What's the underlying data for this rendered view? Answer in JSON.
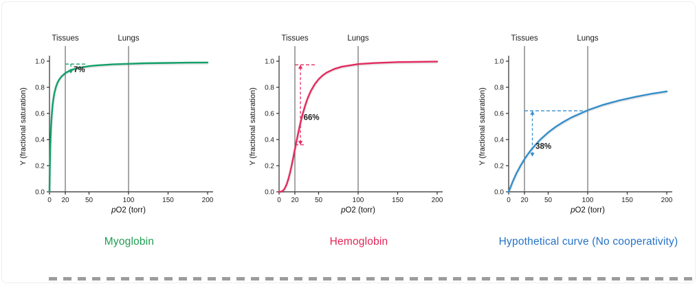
{
  "page": {
    "background": "#ffffff"
  },
  "chart_data": [
    {
      "type": "line",
      "slug": "myoglobin",
      "title": "Myoglobin",
      "title_color": "#1d9d50",
      "color": "#13a06a",
      "xlabel": "pO2 (torr)",
      "xlabel_italic": "p",
      "xlabel_rest": "O2 (torr)",
      "ylabel": "Y (fractional saturation)",
      "xlim": [
        0,
        200
      ],
      "ylim": [
        0,
        1
      ],
      "xticks": [
        0,
        20,
        50,
        100,
        150,
        200
      ],
      "yticks": [
        0,
        0.2,
        0.4,
        0.6,
        0.8,
        1
      ],
      "vlines": [
        {
          "x": 20,
          "label": "Tissues"
        },
        {
          "x": 100,
          "label": "Lungs"
        }
      ],
      "points": [
        [
          0,
          0
        ],
        [
          0.5,
          0.2
        ],
        [
          1,
          0.333
        ],
        [
          1.5,
          0.429
        ],
        [
          2,
          0.5
        ],
        [
          2.5,
          0.556
        ],
        [
          3,
          0.6
        ],
        [
          4,
          0.667
        ],
        [
          5,
          0.714
        ],
        [
          6,
          0.75
        ],
        [
          8,
          0.8
        ],
        [
          10,
          0.833
        ],
        [
          12,
          0.857
        ],
        [
          15,
          0.882
        ],
        [
          20,
          0.909
        ],
        [
          25,
          0.926
        ],
        [
          30,
          0.938
        ],
        [
          40,
          0.952
        ],
        [
          50,
          0.962
        ],
        [
          60,
          0.968
        ],
        [
          80,
          0.976
        ],
        [
          100,
          0.98
        ],
        [
          120,
          0.984
        ],
        [
          150,
          0.987
        ],
        [
          175,
          0.989
        ],
        [
          200,
          0.99
        ]
      ],
      "annotation": {
        "label": "7%",
        "label_x": 30.5,
        "label_y": 0.915,
        "dashes": [
          [
            20,
            0.978,
            47,
            0.978
          ]
        ],
        "arrow": {
          "x": 27,
          "y1": 0.978,
          "y2": 0.905,
          "heads": "down"
        }
      }
    },
    {
      "type": "line",
      "slug": "hemoglobin",
      "title": "Hemoglobin",
      "title_color": "#e32355",
      "color": "#e52a5f",
      "xlabel": "pO2 (torr)",
      "xlabel_italic": "p",
      "xlabel_rest": "O2 (torr)",
      "ylabel": "Y (fractional saturation)",
      "xlim": [
        0,
        200
      ],
      "ylim": [
        0,
        1
      ],
      "xticks": [
        0,
        20,
        50,
        100,
        150,
        200
      ],
      "yticks": [
        0,
        0.2,
        0.4,
        0.6,
        0.8,
        1
      ],
      "vlines": [
        {
          "x": 20,
          "label": "Tissues"
        },
        {
          "x": 100,
          "label": "Lungs"
        }
      ],
      "points": [
        [
          0,
          0
        ],
        [
          2,
          0.001
        ],
        [
          4,
          0.005
        ],
        [
          6,
          0.016
        ],
        [
          8,
          0.036
        ],
        [
          10,
          0.064
        ],
        [
          12,
          0.103
        ],
        [
          14,
          0.15
        ],
        [
          16,
          0.204
        ],
        [
          18,
          0.263
        ],
        [
          20,
          0.324
        ],
        [
          22,
          0.385
        ],
        [
          24,
          0.444
        ],
        [
          26,
          0.5
        ],
        [
          28,
          0.552
        ],
        [
          30,
          0.599
        ],
        [
          33,
          0.661
        ],
        [
          36,
          0.713
        ],
        [
          40,
          0.77
        ],
        [
          45,
          0.823
        ],
        [
          50,
          0.862
        ],
        [
          55,
          0.891
        ],
        [
          60,
          0.912
        ],
        [
          70,
          0.941
        ],
        [
          80,
          0.959
        ],
        [
          100,
          0.978
        ],
        [
          120,
          0.986
        ],
        [
          150,
          0.993
        ],
        [
          175,
          0.995
        ],
        [
          200,
          0.997
        ]
      ],
      "annotation": {
        "label": "66%",
        "label_x": 31,
        "label_y": 0.55,
        "dashes": [
          [
            20,
            0.972,
            47,
            0.972
          ],
          [
            20,
            0.36,
            34,
            0.36
          ]
        ],
        "arrow": {
          "x": 27,
          "y1": 0.972,
          "y2": 0.36,
          "heads": "both"
        }
      }
    },
    {
      "type": "line",
      "slug": "hypothetical",
      "title": "Hypothetical curve (No cooperativity)",
      "title_color": "#2472c8",
      "color": "#338fcc",
      "xlabel": "pO2 (torr)",
      "xlabel_italic": "p",
      "xlabel_rest": "O2 (torr)",
      "ylabel": "Y (fractional saturation)",
      "xlim": [
        0,
        200
      ],
      "ylim": [
        0,
        1
      ],
      "xticks": [
        0,
        20,
        50,
        100,
        150,
        200
      ],
      "yticks": [
        0,
        0.2,
        0.4,
        0.6,
        0.8,
        1
      ],
      "vlines": [
        {
          "x": 20,
          "label": "Tissues"
        },
        {
          "x": 100,
          "label": "Lungs"
        }
      ],
      "points": [
        [
          0,
          0
        ],
        [
          5,
          0.077
        ],
        [
          10,
          0.143
        ],
        [
          15,
          0.2
        ],
        [
          20,
          0.25
        ],
        [
          25,
          0.294
        ],
        [
          30,
          0.333
        ],
        [
          40,
          0.4
        ],
        [
          50,
          0.455
        ],
        [
          60,
          0.5
        ],
        [
          70,
          0.538
        ],
        [
          80,
          0.571
        ],
        [
          100,
          0.625
        ],
        [
          120,
          0.667
        ],
        [
          140,
          0.7
        ],
        [
          160,
          0.727
        ],
        [
          180,
          0.75
        ],
        [
          200,
          0.769
        ]
      ],
      "annotation": {
        "label": "38%",
        "label_x": 34,
        "label_y": 0.33,
        "dashes": [
          [
            20,
            0.62,
            100,
            0.62
          ]
        ],
        "arrow": {
          "x": 30,
          "y1": 0.62,
          "y2": 0.27,
          "heads": "both"
        }
      }
    }
  ]
}
